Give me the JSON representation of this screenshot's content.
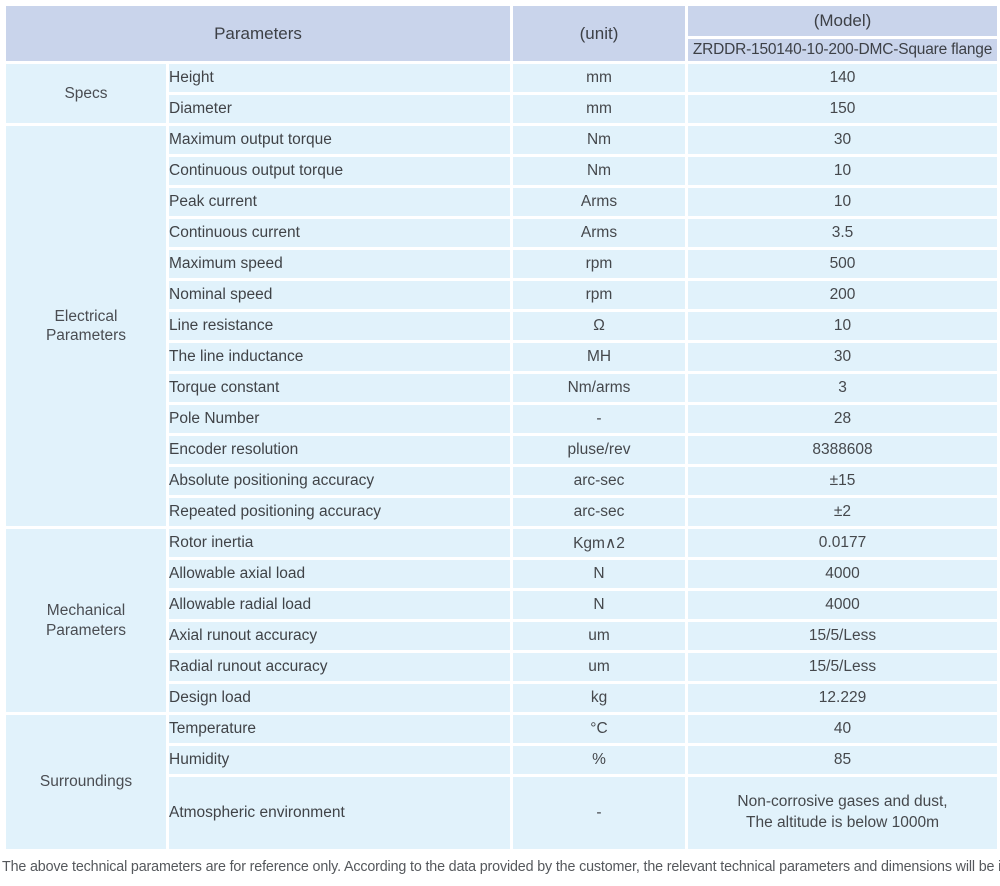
{
  "table": {
    "header": {
      "parameters_label": "Parameters",
      "unit_label": "(unit)",
      "model_label": "(Model)",
      "model_value": "ZRDDR-150140-10-200-DMC-Square flange"
    },
    "groups": [
      {
        "label": "Specs",
        "rows": [
          {
            "parameter": "Height",
            "unit": "mm",
            "value": "140"
          },
          {
            "parameter": "Diameter",
            "unit": "mm",
            "value": "150"
          }
        ]
      },
      {
        "label": "Electrical\nParameters",
        "rows": [
          {
            "parameter": "Maximum output torque",
            "unit": "Nm",
            "value": "30"
          },
          {
            "parameter": "Continuous output torque",
            "unit": "Nm",
            "value": "10"
          },
          {
            "parameter": "Peak current",
            "unit": "Arms",
            "value": "10"
          },
          {
            "parameter": "Continuous current",
            "unit": "Arms",
            "value": "3.5"
          },
          {
            "parameter": "Maximum speed",
            "unit": "rpm",
            "value": "500"
          },
          {
            "parameter": "Nominal speed",
            "unit": "rpm",
            "value": "200"
          },
          {
            "parameter": "Line resistance",
            "unit": "Ω",
            "value": "10"
          },
          {
            "parameter": "The line inductance",
            "unit": "MH",
            "value": "30"
          },
          {
            "parameter": "Torque constant",
            "unit": "Nm/arms",
            "value": "3"
          },
          {
            "parameter": "Pole Number",
            "unit": "-",
            "value": "28"
          },
          {
            "parameter": "Encoder resolution",
            "unit": "pluse/rev",
            "value": "8388608"
          },
          {
            "parameter": "Absolute positioning accuracy",
            "unit": "arc-sec",
            "value": "±15"
          },
          {
            "parameter": "Repeated positioning accuracy",
            "unit": "arc-sec",
            "value": "±2"
          }
        ]
      },
      {
        "label": "Mechanical\nParameters",
        "rows": [
          {
            "parameter": "Rotor inertia",
            "unit": "Kgm∧2",
            "value": "0.0177"
          },
          {
            "parameter": "Allowable axial load",
            "unit": "N",
            "value": "4000"
          },
          {
            "parameter": "Allowable radial load",
            "unit": "N",
            "value": "4000"
          },
          {
            "parameter": "Axial runout accuracy",
            "unit": "um",
            "value": "15/5/Less"
          },
          {
            "parameter": "Radial runout accuracy",
            "unit": "um",
            "value": "15/5/Less"
          },
          {
            "parameter": "Design load",
            "unit": "kg",
            "value": "12.229"
          }
        ]
      },
      {
        "label": "Surroundings",
        "rows": [
          {
            "parameter": "Temperature",
            "unit": "°C",
            "value": "40"
          },
          {
            "parameter": "Humidity",
            "unit": "%",
            "value": "85"
          },
          {
            "parameter": "Atmospheric environment",
            "unit": "-",
            "value": "Non-corrosive gases and dust,\nThe altitude is below 1000m"
          }
        ]
      }
    ]
  },
  "footer": {
    "note": "The above technical parameters are for reference only. According to the data provided by the customer, the relevant technical parameters and dimensions will be issued."
  },
  "colors": {
    "header_bg": "#c9d4eb",
    "cell_bg": "#e1f2fb",
    "grid_line": "#ffffff",
    "text": "#45484c",
    "footer_text": "#55585c"
  }
}
